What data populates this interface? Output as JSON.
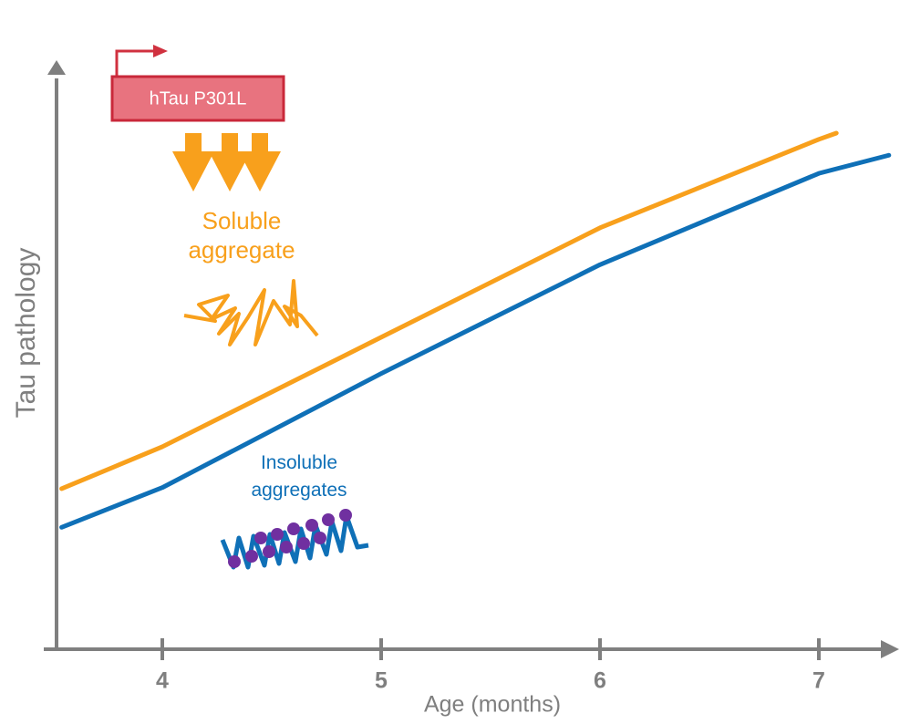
{
  "chart_data": {
    "type": "line",
    "x_label": "Age (months)",
    "y_label": "Tau pathology",
    "annotations": [
      "hTau P301L"
    ],
    "xlim": [
      3.5,
      7.35
    ],
    "xticks": [
      4,
      5,
      6,
      7
    ],
    "ylim": [
      0,
      100
    ],
    "series": [
      {
        "name": "Soluble aggregate",
        "color": "#f8a01c",
        "x": [
          3.54,
          4,
          5,
          6,
          7,
          7.08
        ],
        "values": [
          28.3,
          35.7,
          55,
          74.3,
          89.9,
          91
        ]
      },
      {
        "name": "Insoluble aggregates",
        "color": "#0f70b7",
        "x": [
          3.54,
          4,
          5,
          6,
          7,
          7.32
        ],
        "values": [
          21.5,
          28.5,
          48.6,
          67.8,
          83.9,
          87.1
        ]
      }
    ]
  }
}
